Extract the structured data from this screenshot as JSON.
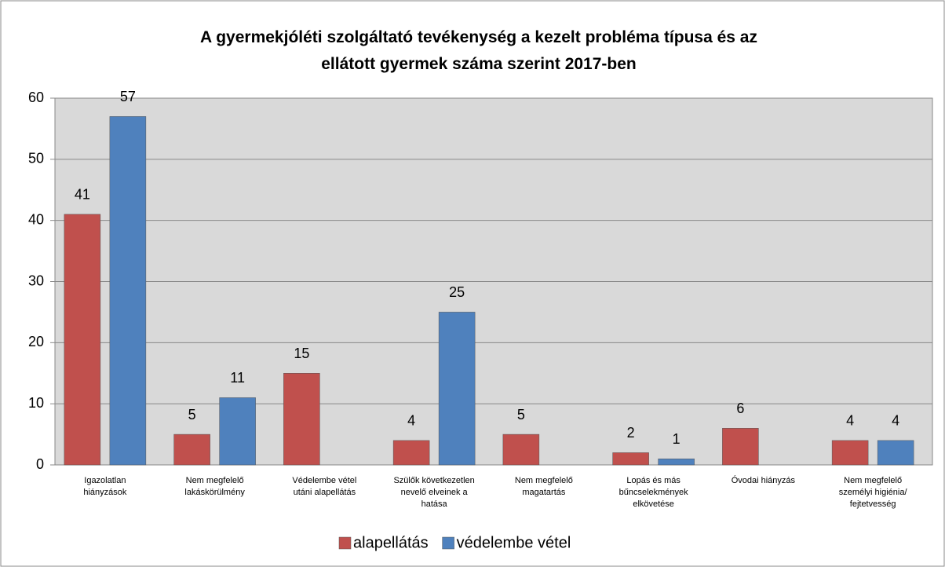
{
  "chart_data": {
    "type": "bar",
    "title": "A gyermekjóléti szolgáltató tevékenység a kezelt probléma típusa és az\nellátott gyermek száma szerint  2017-ben",
    "categories": [
      "Igazolatlan\nhiányzások",
      "Nem megfelelő\nlakáskörülmény",
      "Védelembe vétel\nutáni alapellátás",
      "Szülők következetlen\nnevelő elveinek a\nhatása",
      "Nem megfelelő\nmagatartás",
      "Lopás és más\nbűncselekmények\nelkövetése",
      "Óvodai hiányzás",
      "Nem megfelelő\nszemélyi higiénia/\nfejtetvesség"
    ],
    "series": [
      {
        "name": "alapellátás",
        "color": "#c0504d",
        "values": [
          41,
          5,
          15,
          4,
          5,
          2,
          6,
          4
        ]
      },
      {
        "name": "védelembe vétel",
        "color": "#4f81bd",
        "values": [
          57,
          11,
          null,
          25,
          null,
          1,
          null,
          4
        ]
      }
    ],
    "ylim": [
      0,
      60
    ],
    "yticks": [
      0,
      10,
      20,
      30,
      40,
      50,
      60
    ],
    "grid": true,
    "legend": "bottom"
  }
}
